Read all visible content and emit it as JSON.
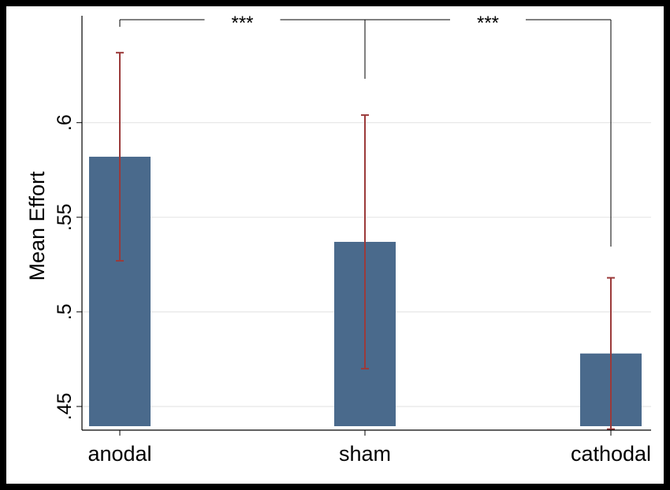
{
  "chart_data": {
    "type": "bar",
    "title": "",
    "xlabel": "",
    "ylabel": "Mean Effort",
    "categories": [
      "anodal",
      "sham",
      "cathodal"
    ],
    "values": [
      0.582,
      0.537,
      0.478
    ],
    "error_bars": [
      {
        "low": 0.527,
        "high": 0.637
      },
      {
        "low": 0.47,
        "high": 0.604
      },
      {
        "low": 0.438,
        "high": 0.518
      }
    ],
    "ylim": [
      0.4375,
      0.6565
    ],
    "y_ticks": [
      0.45,
      0.5,
      0.55,
      0.6
    ],
    "y_tick_labels": [
      ".45",
      ".5",
      ".55",
      ".6"
    ],
    "grid": true,
    "significance": [
      {
        "from": "anodal",
        "to": "sham",
        "label": "***"
      },
      {
        "from": "sham",
        "to": "cathodal",
        "label": "***"
      }
    ],
    "colors": {
      "bar": "#4a6a8c",
      "error_bar": "#9b3a3a",
      "grid": "#e6e6e6",
      "axis": "#000000",
      "bracket": "#000000"
    }
  }
}
